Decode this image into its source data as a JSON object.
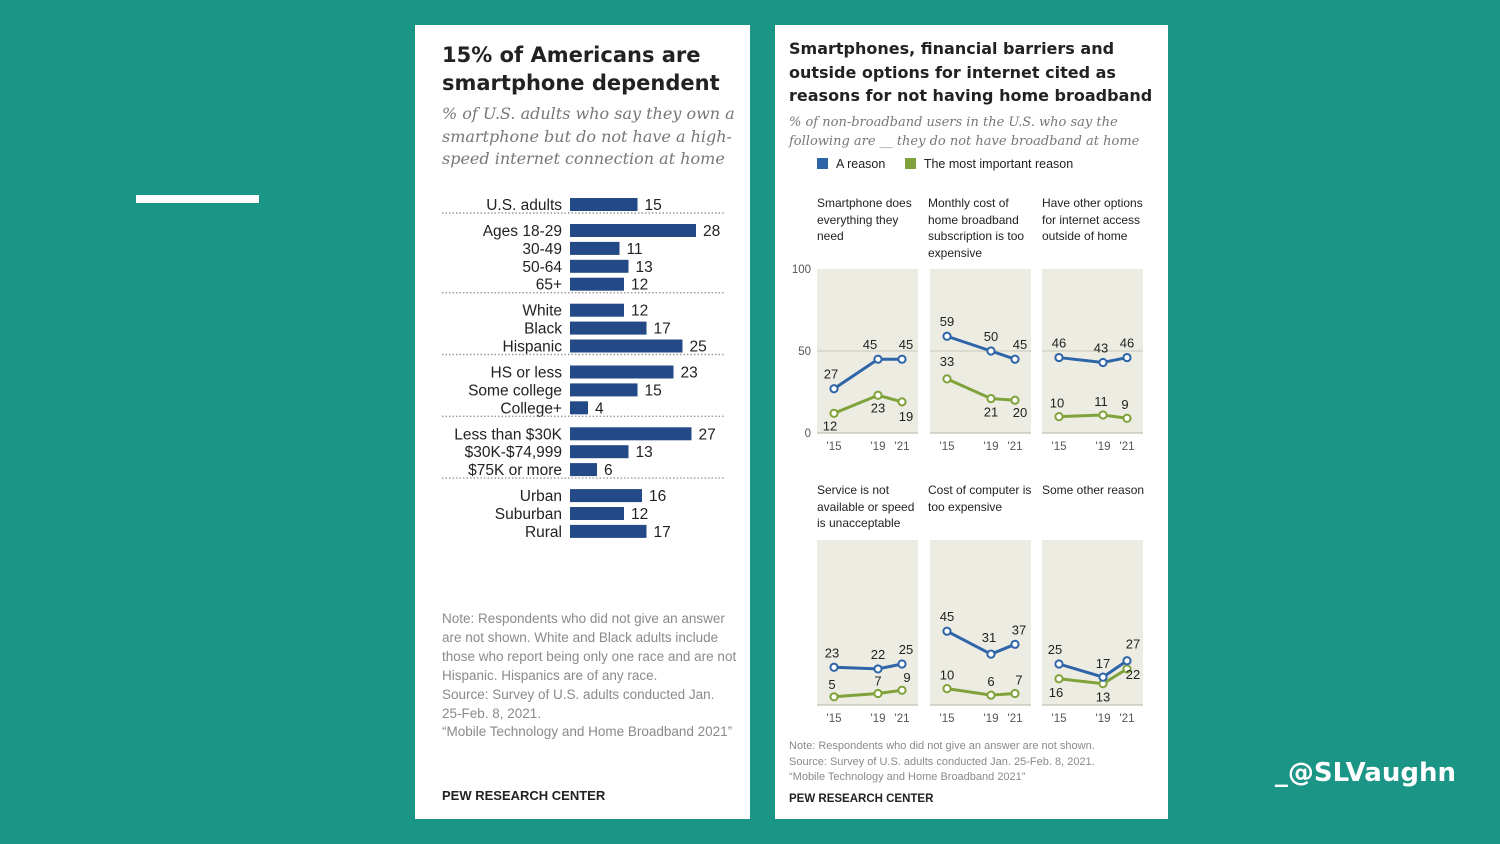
{
  "handle": "_@SLVaughn",
  "left": {
    "title": "15% of Americans are smartphone dependent",
    "subtitle": "% of U.S. adults who say they own a smartphone but do not have a high-speed internet connection at home",
    "note": "Note: Respondents who did not give an answer are not shown. White and Black adults include those who report being only one race and are not Hispanic. Hispanics are of any race.",
    "source": "Source: Survey of U.S. adults conducted Jan. 25-Feb. 8, 2021.",
    "report": "“Mobile Technology and Home Broadband 2021”",
    "brand": "PEW RESEARCH CENTER"
  },
  "right": {
    "title": "Smartphones, financial barriers and outside options for internet cited as reasons for not having home broadband",
    "subtitle": "% of non-broadband users in the U.S. who say the following are __ they do not have broadband at home",
    "note": "Note: Respondents who did not give an answer are not shown.",
    "source": "Source: Survey of U.S. adults conducted Jan. 25-Feb. 8, 2021.",
    "report": "“Mobile Technology and Home Broadband 2021”",
    "brand": "PEW RESEARCH CENTER"
  },
  "chart_data": [
    {
      "type": "bar",
      "orientation": "horizontal",
      "bar_color": "#234a86",
      "groups": [
        {
          "categories": [
            "U.S. adults"
          ],
          "values": [
            15
          ]
        },
        {
          "categories": [
            "Ages 18-29",
            "30-49",
            "50-64",
            "65+"
          ],
          "values": [
            28,
            11,
            13,
            12
          ]
        },
        {
          "categories": [
            "White",
            "Black",
            "Hispanic"
          ],
          "values": [
            12,
            17,
            25
          ]
        },
        {
          "categories": [
            "HS or less",
            "Some college",
            "College+"
          ],
          "values": [
            23,
            15,
            4
          ]
        },
        {
          "categories": [
            "Less than $30K",
            "$30K-$74,999",
            "$75K or more"
          ],
          "values": [
            27,
            13,
            6
          ]
        },
        {
          "categories": [
            "Urban",
            "Suburban",
            "Rural"
          ],
          "values": [
            16,
            12,
            17
          ]
        }
      ]
    },
    {
      "type": "line",
      "x": [
        2015,
        2019,
        2021
      ],
      "x_tick_labels": [
        "'15",
        "'19",
        "'21"
      ],
      "ylim": [
        0,
        100
      ],
      "y_ticks": [
        0,
        50,
        100
      ],
      "legend": [
        "A reason",
        "The most important reason"
      ],
      "colors": {
        "reason": "#2e64a8",
        "important": "#7fa23a",
        "panel_bg": "#edece2"
      },
      "panels": [
        {
          "title": "Smartphone does everything they need",
          "reason": [
            27,
            45,
            45
          ],
          "important": [
            12,
            23,
            19
          ]
        },
        {
          "title": "Monthly cost of home broadband subscription is too expensive",
          "reason": [
            59,
            50,
            45
          ],
          "important": [
            33,
            21,
            20
          ]
        },
        {
          "title": "Have other options for internet access outside of home",
          "reason": [
            46,
            43,
            46
          ],
          "important": [
            10,
            11,
            9
          ]
        },
        {
          "title": "Service is not available or speed is unacceptable",
          "reason": [
            23,
            22,
            25
          ],
          "important": [
            5,
            7,
            9
          ]
        },
        {
          "title": "Cost of computer is too expensive",
          "reason": [
            45,
            31,
            37
          ],
          "important": [
            10,
            6,
            7
          ]
        },
        {
          "title": "Some other reason",
          "reason": [
            25,
            17,
            27
          ],
          "important": [
            16,
            13,
            22
          ]
        }
      ]
    }
  ]
}
